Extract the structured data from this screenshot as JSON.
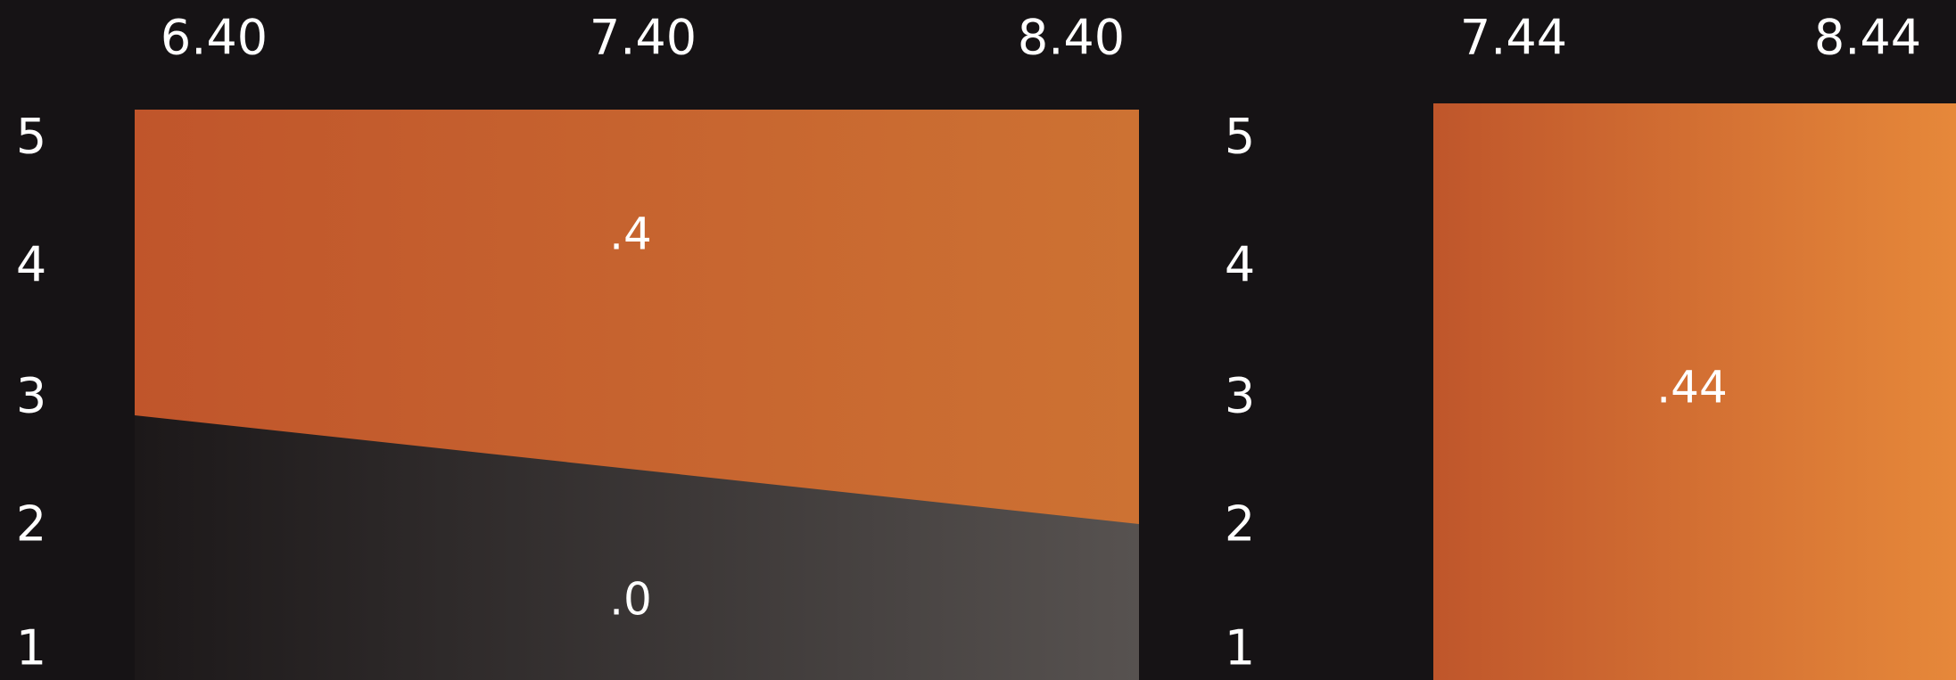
{
  "top_labels": [
    "6.40",
    "7.40",
    "8.40",
    "7.44",
    "8.44"
  ],
  "left_axis": [
    "5",
    "4",
    "3",
    "2",
    "1"
  ],
  "right_axis": [
    "5",
    "4",
    "3",
    "2",
    "1"
  ],
  "left_panel": {
    "upper_label": ".4",
    "lower_label": ".0"
  },
  "right_panel": {
    "label": ".44"
  }
}
